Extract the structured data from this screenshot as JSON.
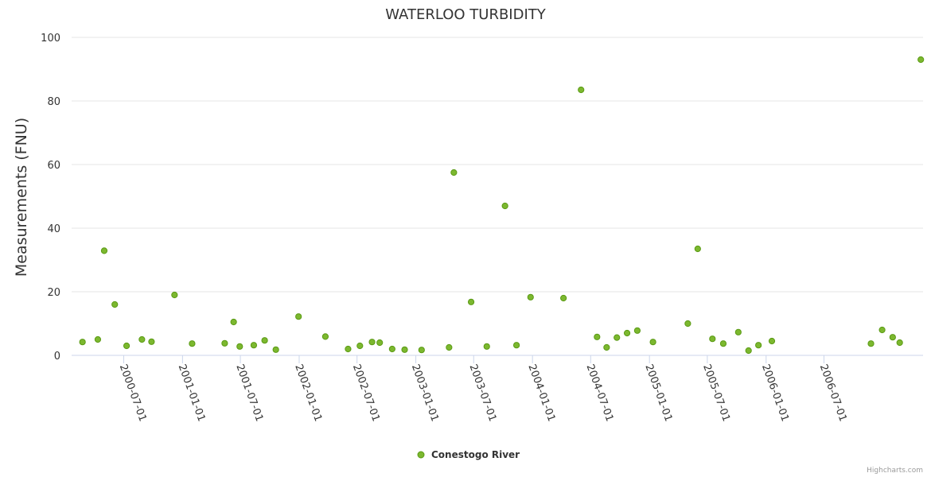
{
  "chart_data": {
    "type": "scatter",
    "title": "WATERLOO TURBIDITY",
    "xlabel": "",
    "ylabel": "Measurements (FNU)",
    "ylim": [
      0,
      100
    ],
    "yticks": [
      0,
      20,
      40,
      60,
      80,
      100
    ],
    "xticks": [
      "2000-07-01",
      "2001-01-01",
      "2001-07-01",
      "2002-01-01",
      "2002-07-01",
      "2003-01-01",
      "2003-07-01",
      "2004-01-01",
      "2004-07-01",
      "2005-01-01",
      "2005-07-01",
      "2006-01-01",
      "2006-07-01"
    ],
    "series": [
      {
        "name": "Conestogo River",
        "color": "#7cb82f",
        "points": [
          [
            "2000-02-23",
            4.2
          ],
          [
            "2000-04-11",
            5.0
          ],
          [
            "2000-05-01",
            32.9
          ],
          [
            "2000-06-03",
            16.0
          ],
          [
            "2000-07-10",
            3.0
          ],
          [
            "2000-08-27",
            5.0
          ],
          [
            "2000-09-26",
            4.3
          ],
          [
            "2000-12-07",
            19.0
          ],
          [
            "2001-01-31",
            3.7
          ],
          [
            "2001-05-13",
            3.8
          ],
          [
            "2001-06-10",
            10.5
          ],
          [
            "2001-06-29",
            2.8
          ],
          [
            "2001-08-12",
            3.2
          ],
          [
            "2001-09-15",
            4.7
          ],
          [
            "2001-10-20",
            1.8
          ],
          [
            "2001-12-30",
            12.2
          ],
          [
            "2002-03-24",
            5.9
          ],
          [
            "2002-06-03",
            2.0
          ],
          [
            "2002-07-10",
            3.0
          ],
          [
            "2002-08-17",
            4.2
          ],
          [
            "2002-09-10",
            4.0
          ],
          [
            "2002-10-19",
            2.0
          ],
          [
            "2002-11-27",
            1.8
          ],
          [
            "2003-01-19",
            1.7
          ],
          [
            "2003-04-15",
            2.5
          ],
          [
            "2003-04-30",
            57.5
          ],
          [
            "2003-06-23",
            16.8
          ],
          [
            "2003-08-11",
            2.8
          ],
          [
            "2003-10-07",
            47.0
          ],
          [
            "2003-11-12",
            3.2
          ],
          [
            "2003-12-26",
            18.3
          ],
          [
            "2004-04-07",
            18.0
          ],
          [
            "2004-06-01",
            83.5
          ],
          [
            "2004-07-21",
            5.8
          ],
          [
            "2004-08-20",
            2.5
          ],
          [
            "2004-09-21",
            5.6
          ],
          [
            "2004-10-23",
            7.0
          ],
          [
            "2004-11-24",
            7.8
          ],
          [
            "2005-01-12",
            4.2
          ],
          [
            "2005-05-01",
            10.0
          ],
          [
            "2005-06-01",
            33.5
          ],
          [
            "2005-07-17",
            5.2
          ],
          [
            "2005-08-20",
            3.7
          ],
          [
            "2005-10-06",
            7.3
          ],
          [
            "2005-11-07",
            1.5
          ],
          [
            "2005-12-08",
            3.2
          ],
          [
            "2006-01-19",
            4.5
          ],
          [
            "2006-11-25",
            3.7
          ],
          [
            "2006-12-30",
            8.0
          ],
          [
            "2007-02-01",
            5.7
          ],
          [
            "2007-02-23",
            4.0
          ],
          [
            "2007-04-30",
            93.0
          ]
        ]
      }
    ],
    "legend": "bottom-center",
    "grid": true,
    "credits": "Highcharts.com"
  }
}
